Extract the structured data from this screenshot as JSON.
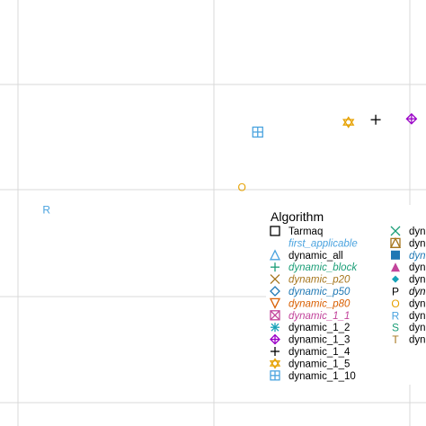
{
  "chart_data": {
    "type": "scatter",
    "grid": true,
    "legend": {
      "title": "Algorithm",
      "placement": "right",
      "entries": [
        {
          "label": "Tarmaq",
          "symbol": "square-open",
          "color": "#000000",
          "italic": false
        },
        {
          "label": "first_applicable",
          "symbol": "none",
          "color": "#4aa3df",
          "italic": true
        },
        {
          "label": "dynamic_all",
          "symbol": "triangle-open",
          "color": "#4aa3df",
          "italic": false
        },
        {
          "label": "dynamic_block",
          "symbol": "plus",
          "color": "#1b9e77",
          "italic": true
        },
        {
          "label": "dynamic_p20",
          "symbol": "x",
          "color": "#a6761d",
          "italic": true
        },
        {
          "label": "dynamic_p50",
          "symbol": "diamond-open",
          "color": "#1f78b4",
          "italic": true
        },
        {
          "label": "dynamic_p80",
          "symbol": "triangle-down-open",
          "color": "#d95f02",
          "italic": true
        },
        {
          "label": "dynamic_1_1",
          "symbol": "square-x",
          "color": "#c2449b",
          "italic": true
        },
        {
          "label": "dynamic_1_2",
          "symbol": "asterisk",
          "color": "#17a2b8",
          "italic": false
        },
        {
          "label": "dynamic_1_3",
          "symbol": "diamond-plus",
          "color": "#9b00c8",
          "italic": false
        },
        {
          "label": "dynamic_1_4",
          "symbol": "plus",
          "color": "#000000",
          "italic": false
        },
        {
          "label": "dynamic_1_5",
          "symbol": "star-of-david",
          "color": "#e6a100",
          "italic": false
        },
        {
          "label": "dynamic_1_10",
          "symbol": "square-plus",
          "color": "#4aa3df",
          "italic": false
        },
        {
          "label": "dyn",
          "symbol": "x",
          "color": "#1b9e77",
          "italic": false
        },
        {
          "label": "dyn",
          "symbol": "triangle-square",
          "color": "#a6761d",
          "italic": false
        },
        {
          "label": "dyn",
          "symbol": "square-filled",
          "color": "#1f78b4",
          "italic": true
        },
        {
          "label": "dyn",
          "symbol": "triangle-filled",
          "color": "#c2449b",
          "italic": false
        },
        {
          "label": "dyn",
          "symbol": "diamond-filled",
          "color": "#17a2b8",
          "italic": false
        },
        {
          "label": "dyn",
          "symbol": "letter-P",
          "color": "#000000",
          "italic": true
        },
        {
          "label": "dyn",
          "symbol": "letter-O",
          "color": "#e6a100",
          "italic": false
        },
        {
          "label": "dyn",
          "symbol": "letter-R",
          "color": "#4aa3df",
          "italic": false
        },
        {
          "label": "dyn",
          "symbol": "letter-S",
          "color": "#1b9e77",
          "italic": false
        },
        {
          "label": "dyn",
          "symbol": "letter-T",
          "color": "#a6761d",
          "italic": false
        }
      ]
    },
    "points": [
      {
        "series": "dynamic_1_10",
        "symbol": "square-plus",
        "color": "#4aa3df",
        "x": 0.605,
        "y": 0.69
      },
      {
        "series": "dynamic_1_5",
        "symbol": "star-of-david",
        "color": "#e6a100",
        "x": 0.818,
        "y": 0.713
      },
      {
        "series": "dynamic_1_4",
        "symbol": "plus",
        "color": "#000000",
        "x": 0.882,
        "y": 0.719
      },
      {
        "series": "dynamic_1_3",
        "symbol": "diamond-plus",
        "color": "#9b00c8",
        "x": 0.966,
        "y": 0.721
      },
      {
        "series": "dyn",
        "symbol": "letter-O",
        "color": "#e6a100",
        "x": 0.568,
        "y": 0.561
      },
      {
        "series": "dyn",
        "symbol": "letter-R",
        "color": "#4aa3df",
        "x": 0.109,
        "y": 0.508
      }
    ]
  }
}
